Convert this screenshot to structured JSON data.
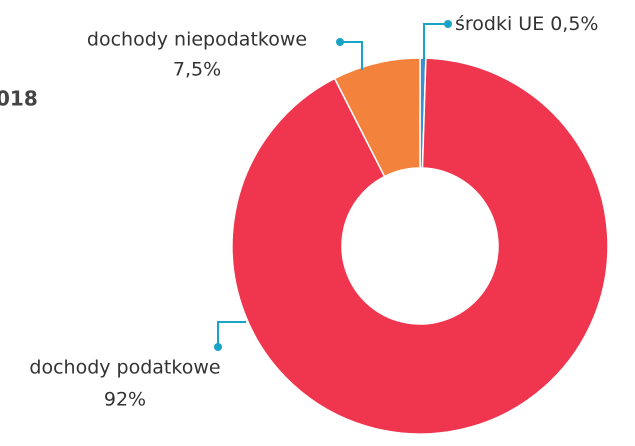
{
  "chart_data": {
    "type": "donut",
    "title": "018",
    "categories": [
      "środki UE",
      "dochody podatkowe",
      "dochody niepodatkowe"
    ],
    "values": [
      0.5,
      92,
      7.5
    ],
    "value_labels": [
      "0,5%",
      "92%",
      "7,5%"
    ],
    "colors": [
      "#3a8fd0",
      "#ef364e",
      "#f3823c"
    ]
  }
}
